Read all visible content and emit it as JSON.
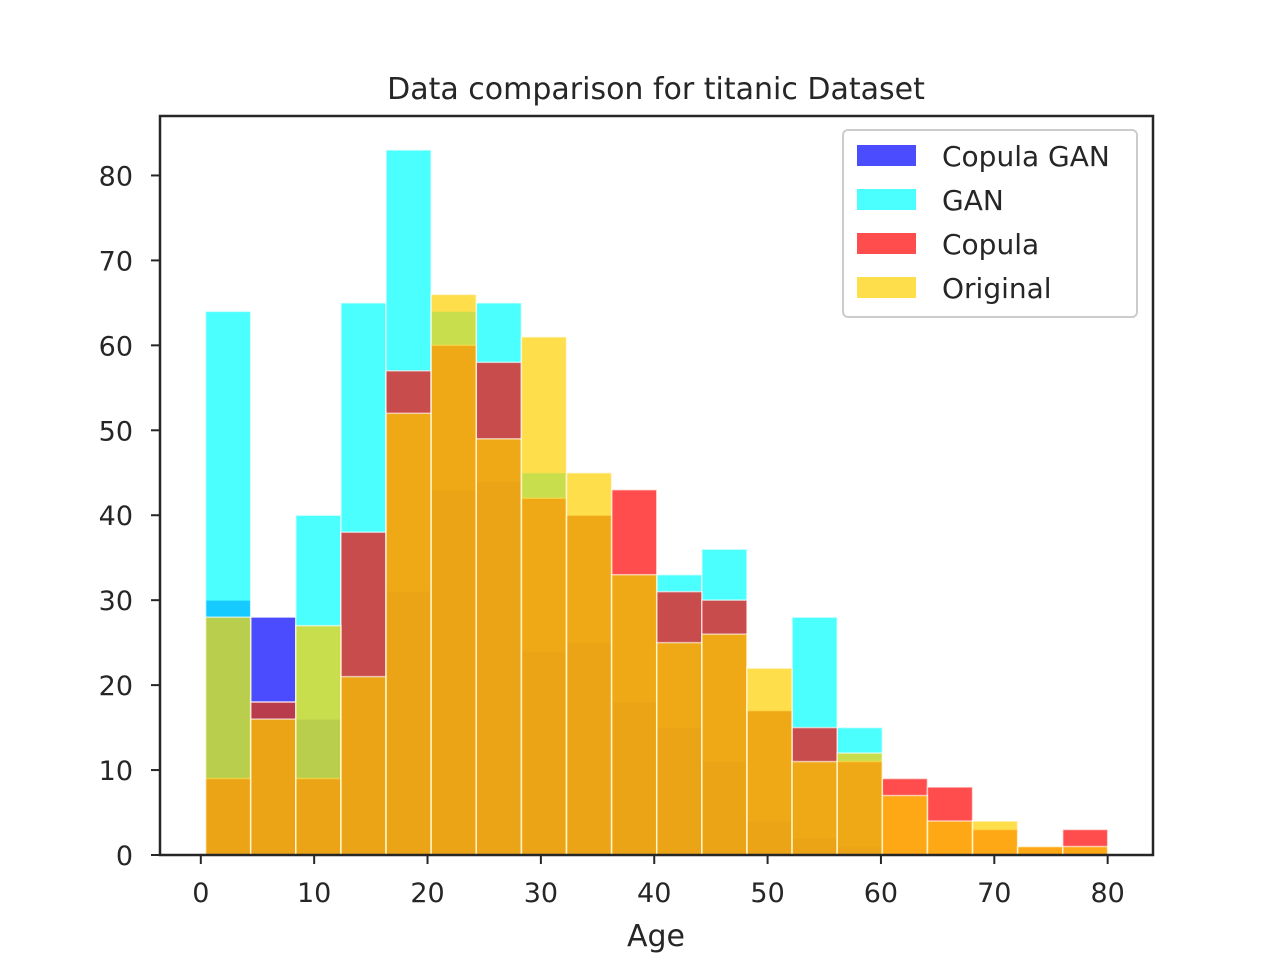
{
  "chart_data": {
    "type": "bar",
    "subtype": "overlapping-histogram",
    "title": "Data comparison for titanic Dataset",
    "xlabel": "Age",
    "ylabel": "",
    "xlim": [
      -3.6,
      84
    ],
    "ylim": [
      0,
      87
    ],
    "xticks": [
      0,
      10,
      20,
      30,
      40,
      50,
      60,
      70,
      80
    ],
    "yticks": [
      0,
      10,
      20,
      30,
      40,
      50,
      60,
      70,
      80
    ],
    "grid": false,
    "legend_position": "top-right",
    "bin_edges": [
      0.42,
      4.4,
      8.38,
      12.36,
      16.34,
      20.32,
      24.3,
      28.28,
      32.26,
      36.24,
      40.22,
      44.2,
      48.18,
      52.16,
      56.14,
      60.12,
      64.1,
      68.08,
      72.06,
      76.04,
      80.0
    ],
    "series": [
      {
        "name": "Copula GAN",
        "color": "#0000ff",
        "values": [
          30,
          28,
          16,
          21,
          31,
          43,
          44,
          24,
          25,
          18,
          15,
          11,
          4,
          2,
          1,
          0,
          0,
          0,
          0,
          0
        ]
      },
      {
        "name": "GAN",
        "color": "#00ffff",
        "values": [
          64,
          18,
          40,
          65,
          83,
          64,
          65,
          45,
          40,
          33,
          33,
          36,
          17,
          28,
          15,
          0,
          0,
          0,
          0,
          0
        ]
      },
      {
        "name": "Copula",
        "color": "#ff0000",
        "values": [
          9,
          18,
          9,
          38,
          57,
          60,
          58,
          42,
          40,
          43,
          31,
          30,
          17,
          15,
          11,
          9,
          8,
          3,
          1,
          3
        ]
      },
      {
        "name": "Original",
        "color": "#ffd000",
        "values": [
          28,
          16,
          27,
          21,
          52,
          66,
          49,
          61,
          45,
          33,
          25,
          26,
          22,
          11,
          12,
          7,
          4,
          4,
          1,
          1
        ]
      }
    ]
  }
}
